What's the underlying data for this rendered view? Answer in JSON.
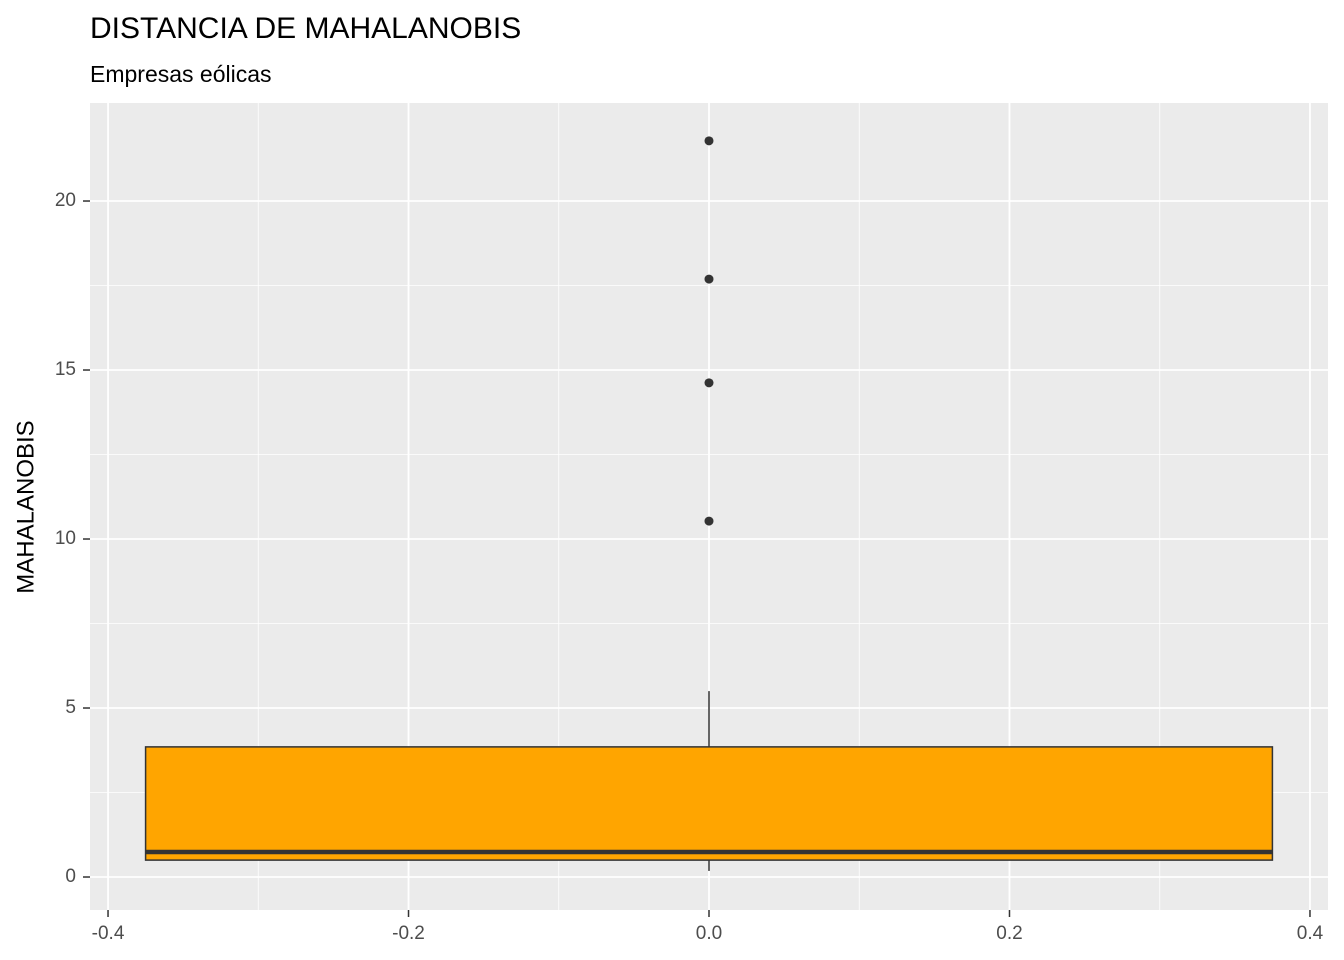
{
  "chart_data": {
    "type": "boxplot",
    "title": "DISTANCIA DE MAHALANOBIS",
    "subtitle": "Empresas eólicas",
    "y_label": "MAHALANOBIS",
    "box": {
      "x": 0,
      "xmin": -0.375,
      "xmax": 0.375,
      "whisker_low": 0.18,
      "q1": 0.5,
      "median": 0.74,
      "q3": 3.85,
      "whisker_high": 5.5,
      "outliers": [
        21.78,
        17.69,
        14.62,
        10.53
      ]
    },
    "color": "#FFA500",
    "xlim": [
      -0.412,
      0.412
    ],
    "xticks": [
      -0.4,
      -0.2,
      {
        "value": 0,
        "label": "0.0"
      },
      0.2,
      0.4
    ],
    "ylim": [
      -0.976,
      22.9
    ],
    "yticks": [
      0,
      5,
      10,
      15,
      20
    ],
    "grid": true
  }
}
